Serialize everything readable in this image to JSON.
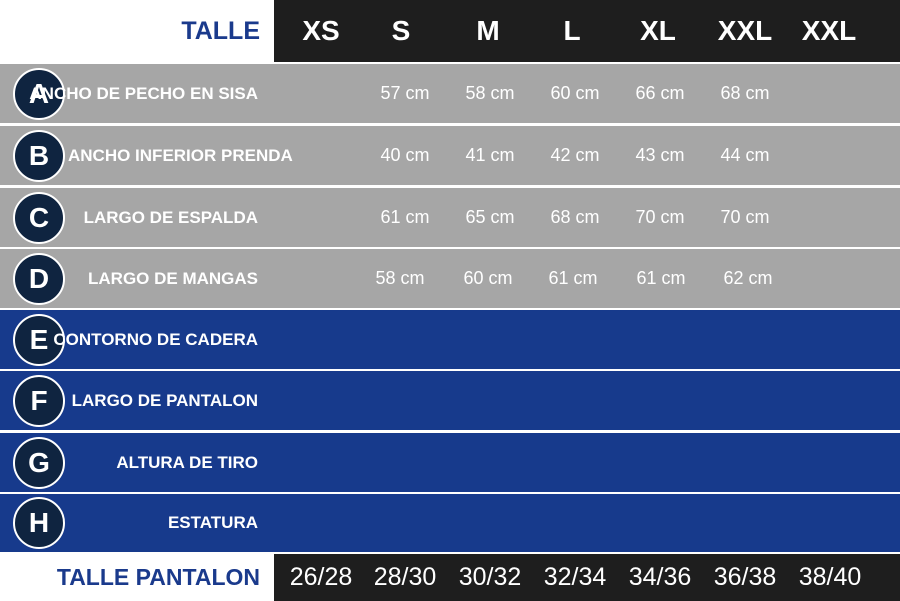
{
  "header": {
    "label": "TALLE",
    "sizes": [
      "XS",
      "S",
      "M",
      "L",
      "XL",
      "XXL",
      "XXL"
    ]
  },
  "rows": [
    {
      "letter": "A",
      "label": "ANCHO DE PECHO EN SISA",
      "values": [
        "57 cm",
        "58 cm",
        "60 cm",
        "66 cm",
        "68 cm"
      ]
    },
    {
      "letter": "B",
      "label": "ANCHO INFERIOR PRENDA",
      "values": [
        "40 cm",
        "41 cm",
        "42 cm",
        "43 cm",
        "44 cm"
      ]
    },
    {
      "letter": "C",
      "label": "LARGO DE ESPALDA",
      "values": [
        "61 cm",
        "65 cm",
        "68 cm",
        "70 cm",
        "70 cm"
      ]
    },
    {
      "letter": "D",
      "label": "LARGO DE MANGAS",
      "values": [
        "58 cm",
        "60 cm",
        "61 cm",
        "61 cm",
        "62 cm"
      ]
    },
    {
      "letter": "E",
      "label": "CONTORNO DE CADERA",
      "values": []
    },
    {
      "letter": "F",
      "label": "LARGO DE PANTALON",
      "values": []
    },
    {
      "letter": "G",
      "label": "ALTURA DE TIRO",
      "values": []
    },
    {
      "letter": "H",
      "label": "ESTATURA",
      "values": []
    }
  ],
  "footer": {
    "label": "TALLE PANTALON",
    "sizes": [
      "26/28",
      "28/30",
      "30/32",
      "32/34",
      "34/36",
      "36/38",
      "38/40"
    ]
  },
  "colors": {
    "gray_row": "#a6a6a6",
    "blue_row": "#173a8c",
    "header_dark": "#1e1e1e",
    "badge": "#0f2440",
    "label_blue": "#1a3a8c"
  }
}
